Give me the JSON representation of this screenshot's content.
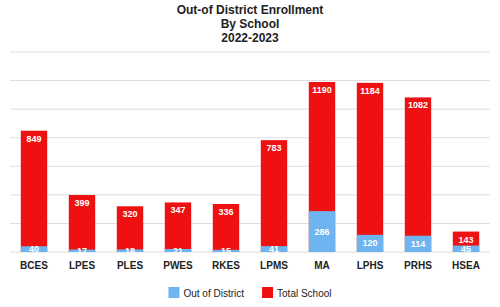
{
  "chart_data": {
    "type": "bar",
    "title": "Out-of District Enrollment\nBy School\n2022-2023",
    "categories": [
      "BCES",
      "LPES",
      "PLES",
      "PWES",
      "RKES",
      "LPMS",
      "MA",
      "LPHS",
      "PRHS",
      "HSEA"
    ],
    "series": [
      {
        "name": "Out of District",
        "color": "#6EB4F0",
        "values": [
          40,
          17,
          18,
          21,
          15,
          41,
          286,
          120,
          114,
          45
        ]
      },
      {
        "name": "Total School",
        "color": "#EE1111",
        "values": [
          849,
          399,
          320,
          347,
          336,
          783,
          1190,
          1184,
          1082,
          143
        ]
      }
    ],
    "ylim": [
      0,
      1400
    ],
    "yticks": [
      0,
      200,
      400,
      600,
      800,
      1000,
      1200,
      1400
    ],
    "grid": true,
    "data_labels": true,
    "tick_labels": "x",
    "legend": "bottom"
  }
}
